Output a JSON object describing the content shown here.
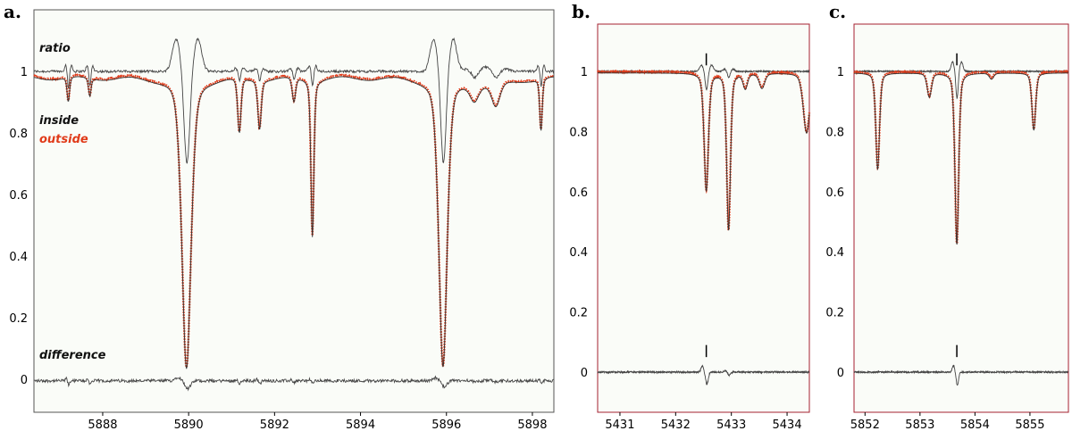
{
  "chart_data": [
    {
      "type": "line",
      "panel_label": "a.",
      "annotations": {
        "ratio": "ratio",
        "inside": "inside",
        "outside": "outside",
        "difference": "difference"
      },
      "xlim": [
        5886.4,
        5898.5
      ],
      "ylim": [
        -0.1,
        1.13
      ],
      "x_ticks": [
        "5888",
        "5890",
        "5892",
        "5894",
        "5896",
        "5898"
      ],
      "y_ticks": [
        "0",
        "0.2",
        "0.4",
        "0.6",
        "0.8",
        "1"
      ],
      "continuum": 0.985,
      "difference_baseline": -0.005,
      "ratio_baseline": 1.0,
      "lines": [
        {
          "center": 5889.95,
          "depth": 0.95,
          "width": 0.11,
          "ratio_dip": 0.3,
          "diff": 0.025
        },
        {
          "center": 5895.92,
          "depth": 0.94,
          "width": 0.1,
          "ratio_dip": 0.3,
          "diff": 0.02
        },
        {
          "center": 5892.88,
          "depth": 0.51,
          "width": 0.035,
          "ratio_dip": 0.05,
          "diff": 0.01
        },
        {
          "center": 5891.18,
          "depth": 0.18,
          "width": 0.04,
          "ratio_dip": 0.03,
          "diff": 0.01
        },
        {
          "center": 5891.65,
          "depth": 0.16,
          "width": 0.04,
          "ratio_dip": 0.03,
          "diff": 0.01
        },
        {
          "center": 5892.45,
          "depth": 0.08,
          "width": 0.04,
          "ratio_dip": 0.03,
          "diff": 0.005
        },
        {
          "center": 5898.2,
          "depth": 0.17,
          "width": 0.03,
          "ratio_dip": 0.05,
          "diff": 0.01
        },
        {
          "center": 5887.2,
          "depth": 0.08,
          "width": 0.03,
          "ratio_dip": 0.06,
          "diff": 0.015
        },
        {
          "center": 5887.7,
          "depth": 0.06,
          "width": 0.03,
          "ratio_dip": 0.05,
          "diff": 0.012
        },
        {
          "center": 5897.15,
          "depth": 0.08,
          "width": 0.1,
          "ratio_dip": 0.02,
          "diff": 0.005
        },
        {
          "center": 5896.65,
          "depth": 0.05,
          "width": 0.1,
          "ratio_dip": 0.02,
          "diff": 0.005
        }
      ]
    },
    {
      "type": "line",
      "panel_label": "b.",
      "xlim": [
        5430.6,
        5434.4
      ],
      "ylim": [
        -0.1,
        1.13
      ],
      "x_ticks": [
        "5431",
        "5432",
        "5433",
        "5434"
      ],
      "y_ticks": [
        "0",
        "0.2",
        "0.4",
        "0.6",
        "0.8",
        "1"
      ],
      "continuum": 0.995,
      "difference_baseline": 0.0,
      "ratio_baseline": 1.0,
      "marker_x": 5432.55,
      "lines": [
        {
          "center": 5432.55,
          "depth": 0.39,
          "width": 0.04,
          "ratio_dip": 0.06,
          "diff": 0.04
        },
        {
          "center": 5432.95,
          "depth": 0.52,
          "width": 0.035,
          "ratio_dip": 0.02,
          "diff": 0.01
        },
        {
          "center": 5433.25,
          "depth": 0.05,
          "width": 0.04,
          "ratio_dip": 0.0,
          "diff": 0.0
        },
        {
          "center": 5433.55,
          "depth": 0.05,
          "width": 0.05,
          "ratio_dip": 0.0,
          "diff": 0.0
        },
        {
          "center": 5434.35,
          "depth": 0.2,
          "width": 0.06,
          "ratio_dip": 0.0,
          "diff": 0.0
        }
      ]
    },
    {
      "type": "line",
      "panel_label": "c.",
      "xlim": [
        5851.8,
        5855.7
      ],
      "ylim": [
        -0.1,
        1.13
      ],
      "x_ticks": [
        "5852",
        "5853",
        "5854",
        "5855"
      ],
      "y_ticks": [
        "0",
        "0.2",
        "0.4",
        "0.6",
        "0.8",
        "1"
      ],
      "continuum": 0.995,
      "difference_baseline": 0.0,
      "ratio_baseline": 1.0,
      "marker_x": 5853.67,
      "lines": [
        {
          "center": 5852.23,
          "depth": 0.32,
          "width": 0.035,
          "ratio_dip": 0.0,
          "diff": 0.0
        },
        {
          "center": 5853.17,
          "depth": 0.08,
          "width": 0.04,
          "ratio_dip": 0.0,
          "diff": 0.0
        },
        {
          "center": 5853.67,
          "depth": 0.57,
          "width": 0.035,
          "ratio_dip": 0.09,
          "diff": 0.045
        },
        {
          "center": 5854.3,
          "depth": 0.02,
          "width": 0.04,
          "ratio_dip": 0.0,
          "diff": 0.0
        },
        {
          "center": 5855.07,
          "depth": 0.19,
          "width": 0.035,
          "ratio_dip": 0.0,
          "diff": 0.0
        }
      ]
    }
  ],
  "colors": {
    "inside": "#333333",
    "outside": "#e03b1a",
    "ratio": "#444444",
    "difference": "#444444",
    "panel_a_frame": "#555555",
    "panel_bc_frame": "#a52030",
    "plot_bg": "#fafcf8"
  }
}
